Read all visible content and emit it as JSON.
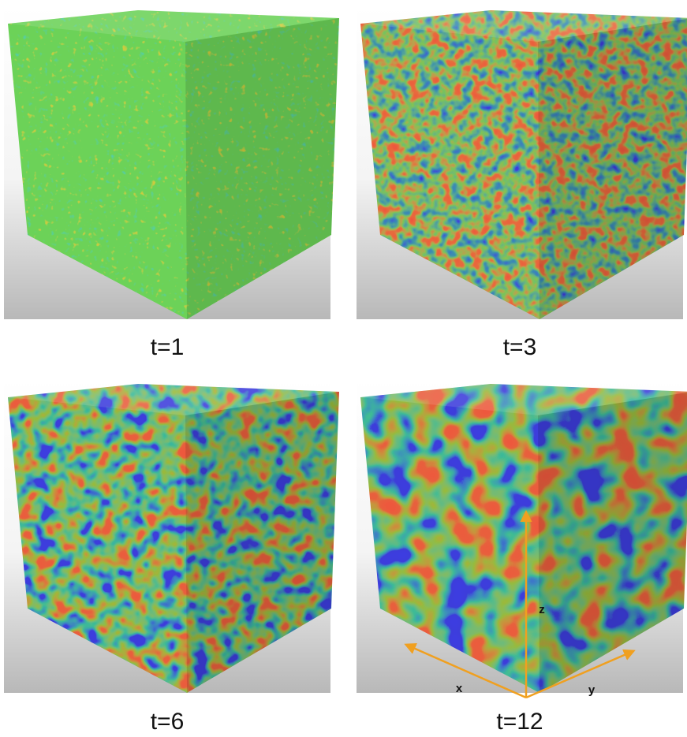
{
  "panels": [
    {
      "caption": "t=1"
    },
    {
      "caption": "t=3"
    },
    {
      "caption": "t=6"
    },
    {
      "caption": "t=12"
    }
  ],
  "axes": {
    "x": "x",
    "y": "y",
    "z": "z"
  }
}
